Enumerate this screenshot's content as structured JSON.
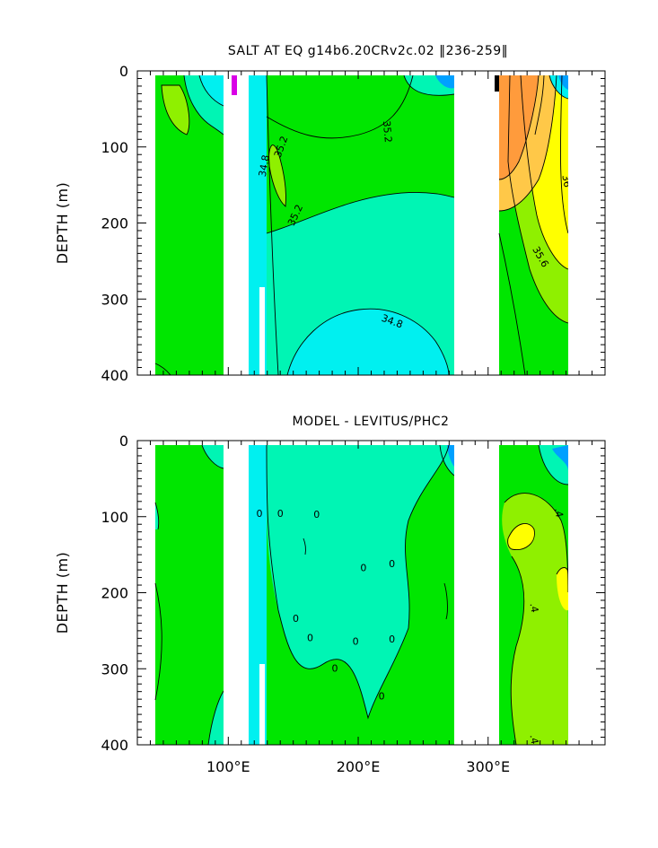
{
  "chart_data": [
    {
      "type": "heatmap",
      "title": "SALT AT EQ g14b6.20CRv2c.02 ‖236-259‖",
      "ylabel": "DEPTH (m)",
      "xlabel": "",
      "xlim": [
        30,
        390
      ],
      "ylim": [
        400,
        0
      ],
      "x_ticks": [
        100,
        200,
        300
      ],
      "x_tick_labels": [
        "100°E",
        "200°E",
        "300°E"
      ],
      "y_ticks": [
        0,
        100,
        200,
        300,
        400
      ],
      "y_tick_labels": [
        "0",
        "100",
        "200",
        "300",
        "400"
      ],
      "contour_labels": [
        {
          "text": "35.2",
          "x": 222,
          "y": 80,
          "rot": 85
        },
        {
          "text": "35.2",
          "x": 141,
          "y": 100,
          "rot": -70
        },
        {
          "text": "34.8",
          "x": 128,
          "y": 125,
          "rot": -80
        },
        {
          "text": "35.2",
          "x": 152,
          "y": 190,
          "rot": -65
        },
        {
          "text": "34.8",
          "x": 226,
          "y": 330,
          "rot": 20
        },
        {
          "text": "36",
          "x": 360,
          "y": 145,
          "rot": 80
        },
        {
          "text": "35.6",
          "x": 340,
          "y": 245,
          "rot": 60
        }
      ],
      "colors": {
        "green": "#00e600",
        "cyan": "#00f0f0",
        "aqua": "#00f5b4",
        "lgreen": "#8ff000",
        "yellow": "#ffff00",
        "lorange": "#ffc848",
        "orange": "#ff9b3c"
      }
    },
    {
      "type": "heatmap",
      "title": "MODEL - LEVITUS/PHC2",
      "ylabel": "DEPTH (m)",
      "xlabel": "",
      "xlim": [
        30,
        390
      ],
      "ylim": [
        400,
        0
      ],
      "x_ticks": [
        100,
        200,
        300
      ],
      "x_tick_labels": [
        "100°E",
        "200°E",
        "300°E"
      ],
      "y_ticks": [
        0,
        100,
        200,
        300,
        400
      ],
      "y_tick_labels": [
        "0",
        "100",
        "200",
        "300",
        "400"
      ],
      "contour_labels": [
        {
          "text": "0",
          "x": 124,
          "y": 97,
          "rot": 0
        },
        {
          "text": "0",
          "x": 140,
          "y": 97,
          "rot": 0
        },
        {
          "text": "0",
          "x": 168,
          "y": 98,
          "rot": 0
        },
        {
          "text": "0",
          "x": 204,
          "y": 168,
          "rot": 0
        },
        {
          "text": "0",
          "x": 226,
          "y": 163,
          "rot": 0
        },
        {
          "text": "0",
          "x": 152,
          "y": 235,
          "rot": 0
        },
        {
          "text": "0",
          "x": 163,
          "y": 260,
          "rot": 0
        },
        {
          "text": "0",
          "x": 198,
          "y": 265,
          "rot": 0
        },
        {
          "text": "0",
          "x": 226,
          "y": 262,
          "rot": 0
        },
        {
          "text": "0",
          "x": 182,
          "y": 300,
          "rot": 0
        },
        {
          "text": "0",
          "x": 218,
          "y": 337,
          "rot": 0
        },
        {
          "text": ".4",
          "x": 354,
          "y": 95,
          "rot": 80
        },
        {
          "text": ".4",
          "x": 335,
          "y": 220,
          "rot": 80
        },
        {
          "text": ".4",
          "x": 335,
          "y": 393,
          "rot": 80
        }
      ]
    }
  ]
}
